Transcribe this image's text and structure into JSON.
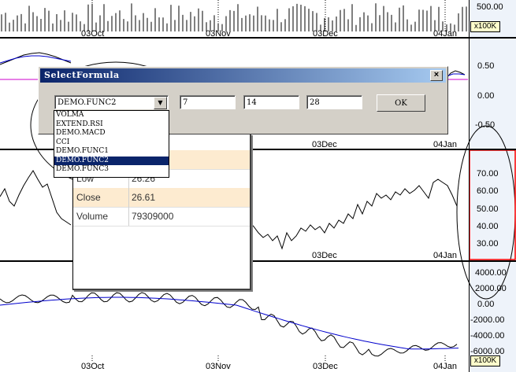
{
  "panels": {
    "volume": {
      "y_label": "500.00",
      "unit": "x100K",
      "date_labels": [
        "03Oct",
        "03Nov",
        "03Dec",
        "04Jan"
      ]
    },
    "macd": {
      "y_labels": [
        "0.50",
        "0.00",
        "-0.50"
      ],
      "date_labels": [
        "03Dec",
        "04Jan"
      ]
    },
    "price": {
      "y_labels": [
        "70.00",
        "60.00",
        "50.00",
        "40.00",
        "30.00"
      ],
      "date_labels": [
        "03Dec",
        "04Jan"
      ]
    },
    "oscillator": {
      "y_labels": [
        "4000.00",
        "2000.00",
        "0.00",
        "-2000.00",
        "-4000.00",
        "-6000.00"
      ],
      "unit": "x100K",
      "date_labels": [
        "03Oct",
        "03Nov",
        "03Dec",
        "04Jan"
      ]
    }
  },
  "data_window": {
    "rows": [
      {
        "label": "Low",
        "value": "26.26"
      },
      {
        "label": "Close",
        "value": "26.61"
      },
      {
        "label": "Volume",
        "value": "79309000"
      }
    ]
  },
  "dialog": {
    "title": "SelectFormula",
    "close_glyph": "×",
    "formula_selected": "DEMO.FUNC2",
    "param1": "7",
    "param2": "14",
    "param3": "28",
    "ok_label": "OK",
    "dropdown_options": [
      "VOLMA",
      "EXTEND.RSI",
      "DEMO.MACD",
      "CCI",
      "DEMO.FUNC1",
      "DEMO.FUNC2",
      "DEMO.FUNC3"
    ],
    "dropdown_selected_index": 5
  },
  "colors": {
    "price_line": "#000000",
    "ma_line": "#0000cc",
    "signal_line": "#cc00cc",
    "axis_bg": "#eef3fa",
    "highlight_border": "#ff0000",
    "title_gradient_start": "#0a246a",
    "row_alt": "#fdebd0"
  },
  "icons": {
    "close": "close-icon",
    "combo_arrow": "chevron-down-icon"
  }
}
